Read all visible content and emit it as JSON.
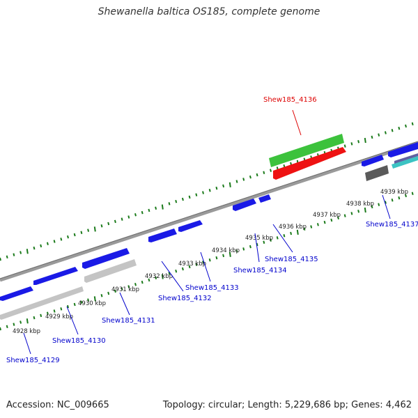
{
  "title": "Shewanella baltica OS185, complete genome",
  "footer": {
    "accession": "Accession: NC_009665",
    "summary": "Topology: circular; Length: 5,229,686 bp; Genes: 4,462"
  },
  "colors": {
    "background": "#ffffff",
    "backbone": "#808080",
    "tick": "#1a7a1a",
    "forward_gene": "#0000ee",
    "reverse_gene": "#0000ee",
    "label_blue": "#0000cc",
    "label_red": "#dd0000",
    "green_feature": "#3cc23c",
    "red_feature": "#ee1010",
    "gray_feature": "#c0c0c0",
    "dark_feature": "#555555",
    "cyan_feature": "#33c0c0"
  },
  "scale_labels": [
    "4928 kbp",
    "4929 kbp",
    "4930 kbp",
    "4931 kbp",
    "4932 kbp",
    "4933 kbp",
    "4934 kbp",
    "4935 kbp",
    "4936 kbp",
    "4937 kbp",
    "4938 kbp",
    "4939 kbp"
  ],
  "gene_labels": [
    {
      "text": "Shew185_4129",
      "color": "blue"
    },
    {
      "text": "Shew185_4130",
      "color": "blue"
    },
    {
      "text": "Shew185_4131",
      "color": "blue"
    },
    {
      "text": "Shew185_4132",
      "color": "blue"
    },
    {
      "text": "Shew185_4133",
      "color": "blue"
    },
    {
      "text": "Shew185_4134",
      "color": "blue"
    },
    {
      "text": "Shew185_4135",
      "color": "blue"
    },
    {
      "text": "Shew185_4136",
      "color": "red"
    },
    {
      "text": "Shew185_4137",
      "color": "blue"
    }
  ]
}
